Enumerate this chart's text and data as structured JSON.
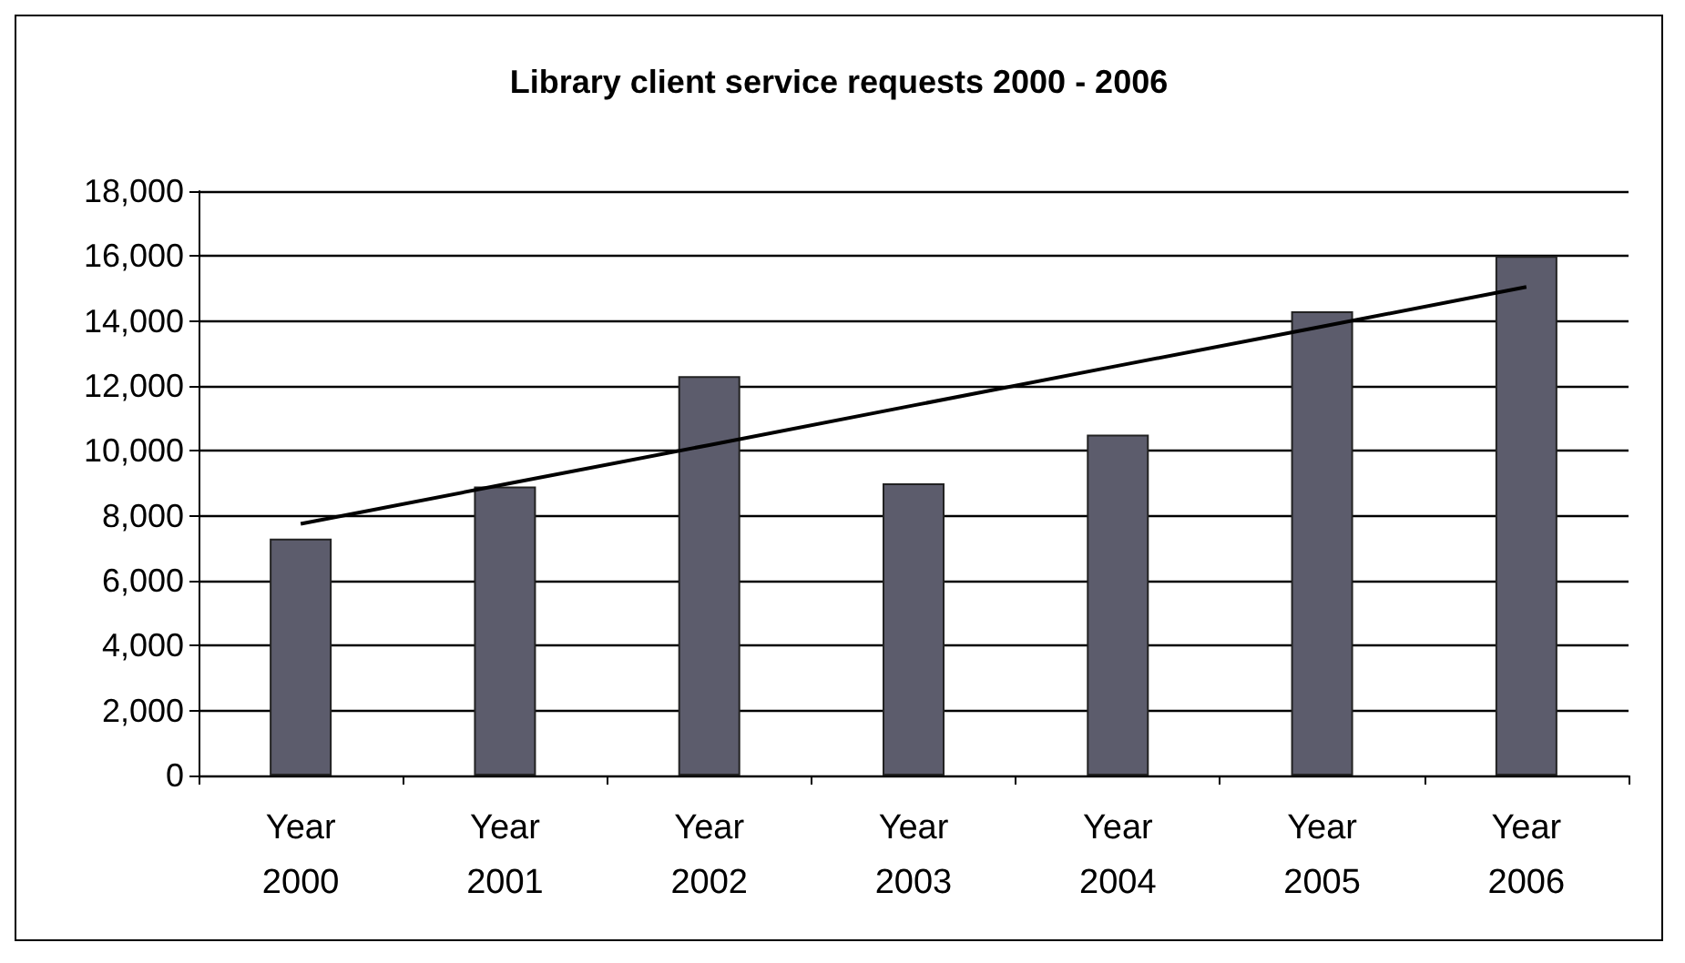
{
  "chart_data": {
    "type": "bar",
    "title": "Library client service requests 2000 - 2006",
    "categories": [
      "Year\n2000",
      "Year\n2001",
      "Year\n2002",
      "Year\n2003",
      "Year\n2004",
      "Year\n2005",
      "Year\n2006"
    ],
    "series": [
      {
        "color": "#5c5c6c",
        "values": [
          7300,
          8900,
          12300,
          9000,
          10500,
          14300,
          16000
        ]
      },
      {
        "type": "line",
        "color": "#000000",
        "values": [
          7750,
          8970,
          10180,
          11400,
          12620,
          13830,
          15050
        ]
      }
    ],
    "ylim": [
      0,
      18000
    ],
    "yticks": [
      0,
      {
        "value": 2000,
        "label": "2,000"
      },
      {
        "value": 4000,
        "label": "4,000"
      },
      {
        "value": 6000,
        "label": "6,000"
      },
      {
        "value": 8000,
        "label": "8,000"
      },
      {
        "value": 10000,
        "label": "10,000"
      },
      {
        "value": 12000,
        "label": "12,000"
      },
      {
        "value": 14000,
        "label": "14,000"
      },
      {
        "value": 16000,
        "label": "16,000"
      },
      {
        "value": 18000,
        "label": "18,000"
      }
    ],
    "grid": "y",
    "marker": "none"
  }
}
